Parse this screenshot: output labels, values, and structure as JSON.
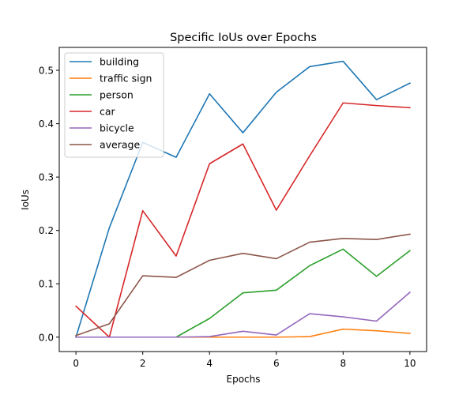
{
  "chart_data": {
    "type": "line",
    "title": "Specific IoUs over Epochs",
    "xlabel": "Epochs",
    "ylabel": "IoUs",
    "xlim": [
      -0.5,
      10.5
    ],
    "ylim": [
      -0.027,
      0.543
    ],
    "xticks": [
      0,
      2,
      4,
      6,
      8,
      10
    ],
    "xtick_labels": [
      "0",
      "2",
      "4",
      "6",
      "8",
      "10"
    ],
    "yticks": [
      0.0,
      0.1,
      0.2,
      0.3,
      0.4,
      0.5
    ],
    "ytick_labels": [
      "0.0",
      "0.1",
      "0.2",
      "0.3",
      "0.4",
      "0.5"
    ],
    "grid": false,
    "legend_position": "top-left",
    "x": [
      0,
      1,
      2,
      3,
      4,
      5,
      6,
      7,
      8,
      9,
      10
    ],
    "series": [
      {
        "name": "building",
        "color": "#1f77b4",
        "values": [
          0.0,
          0.205,
          0.365,
          0.337,
          0.456,
          0.383,
          0.459,
          0.507,
          0.517,
          0.445,
          0.476
        ]
      },
      {
        "name": "traffic sign",
        "color": "#ff7f0e",
        "values": [
          0.0,
          0.0,
          0.0,
          0.0,
          0.0,
          0.0,
          0.0,
          0.001,
          0.015,
          0.012,
          0.007
        ]
      },
      {
        "name": "person",
        "color": "#2ca02c",
        "values": [
          0.0,
          0.0,
          0.0,
          0.0,
          0.035,
          0.083,
          0.088,
          0.134,
          0.165,
          0.114,
          0.162
        ]
      },
      {
        "name": "car",
        "color": "#d62728",
        "values": [
          0.058,
          0.0,
          0.237,
          0.152,
          0.325,
          0.362,
          0.238,
          0.34,
          0.439,
          0.434,
          0.43
        ]
      },
      {
        "name": "bicycle",
        "color": "#9467bd",
        "values": [
          0.0,
          0.0,
          0.0,
          0.0,
          0.001,
          0.011,
          0.004,
          0.044,
          0.038,
          0.03,
          0.084
        ]
      },
      {
        "name": "average",
        "color": "#8c564b",
        "values": [
          0.003,
          0.025,
          0.115,
          0.112,
          0.144,
          0.157,
          0.147,
          0.178,
          0.185,
          0.183,
          0.193
        ]
      }
    ]
  }
}
